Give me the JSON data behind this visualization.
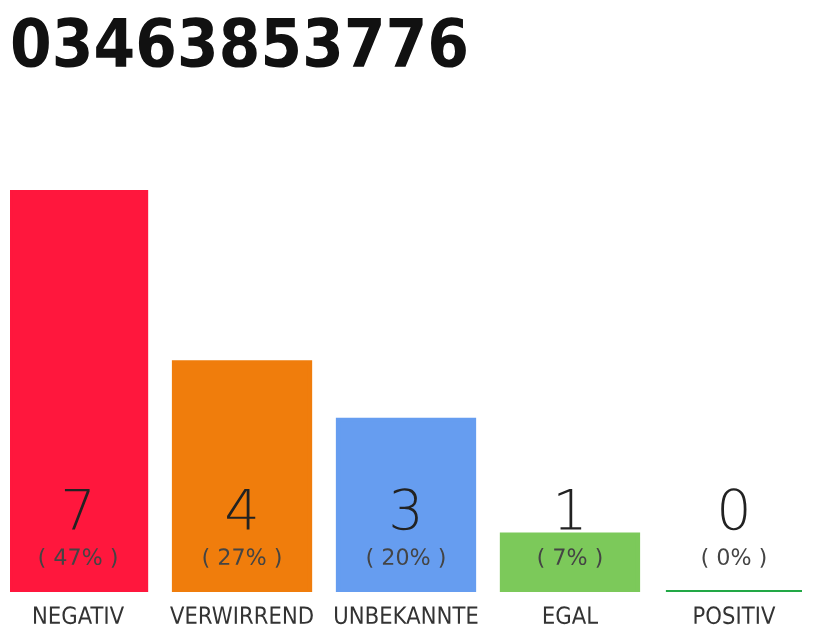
{
  "chart_data": {
    "type": "bar",
    "title": "03463853776",
    "tick_labels": "x",
    "data_labels": true,
    "categories": [
      "NEGATIV",
      "VERWIRREND",
      "UNBEKANNTE",
      "EGAL",
      "POSITIV"
    ],
    "values": [
      7,
      4,
      3,
      1,
      0
    ],
    "colors": [
      "#ff173d",
      "#f07d0c",
      "#669df0",
      "#7cc95a",
      "#22a846"
    ],
    "annotations": [
      {
        "text": "( 47% )",
        "x": "NEGATIV",
        "y": 0
      },
      {
        "text": "( 27% )",
        "x": "VERWIRREND",
        "y": 0
      },
      {
        "text": "( 20% )",
        "x": "UNBEKANNTE",
        "y": 0
      },
      {
        "text": "( 7% )",
        "x": "EGAL",
        "y": 0
      },
      {
        "text": "( 0% )",
        "x": "POSITIV",
        "y": 0
      }
    ],
    "grid": false,
    "legend": false
  }
}
